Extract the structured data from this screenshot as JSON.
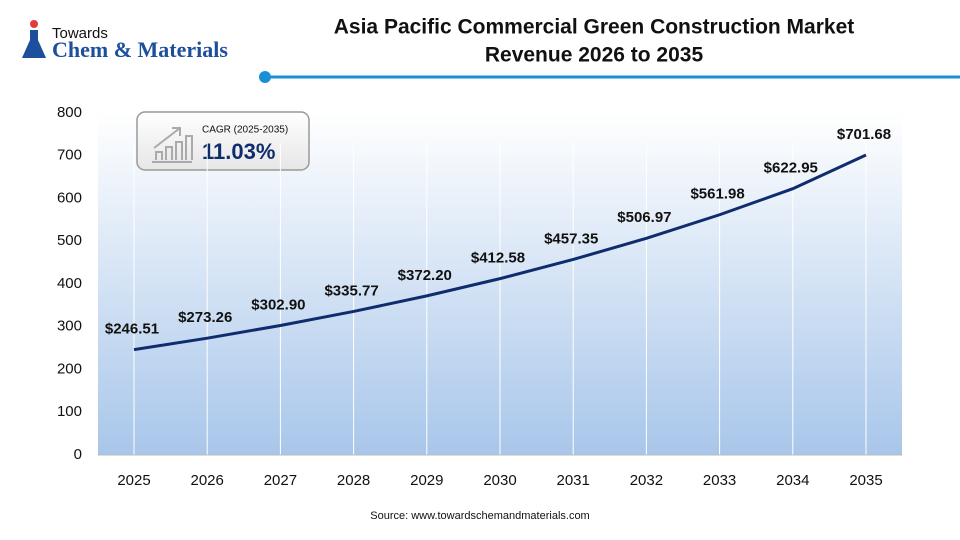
{
  "brand": [
    "Towards",
    "Chem & Materials"
  ],
  "chart_data": {
    "type": "line",
    "title": [
      "Asia Pacific Commercial Green Construction Market",
      "Revenue 2026 to 2035"
    ],
    "categories": [
      "2025",
      "2026",
      "2027",
      "2028",
      "2029",
      "2030",
      "2031",
      "2032",
      "2033",
      "2034",
      "2035"
    ],
    "series": [
      {
        "name": "Revenue",
        "color": "#0f2d6e",
        "values": [
          246.51,
          273.26,
          302.9,
          335.77,
          372.2,
          412.58,
          457.35,
          506.97,
          561.98,
          622.95,
          701.68
        ],
        "value_labels": [
          "$246.51",
          "$273.26",
          "$302.90",
          "$335.77",
          "$372.20",
          "$412.58",
          "$457.35",
          "$506.97",
          "$561.98",
          "$622.95",
          "$701.68"
        ]
      }
    ],
    "ylim": [
      0,
      800
    ],
    "yticks": [
      0,
      100,
      200,
      300,
      400,
      500,
      600,
      700,
      800
    ],
    "annotations": {
      "cagr_label": "CAGR (2025-2035)",
      "cagr_value": "11.03%"
    },
    "source": "Source: www.towardschemandmaterials.com"
  }
}
